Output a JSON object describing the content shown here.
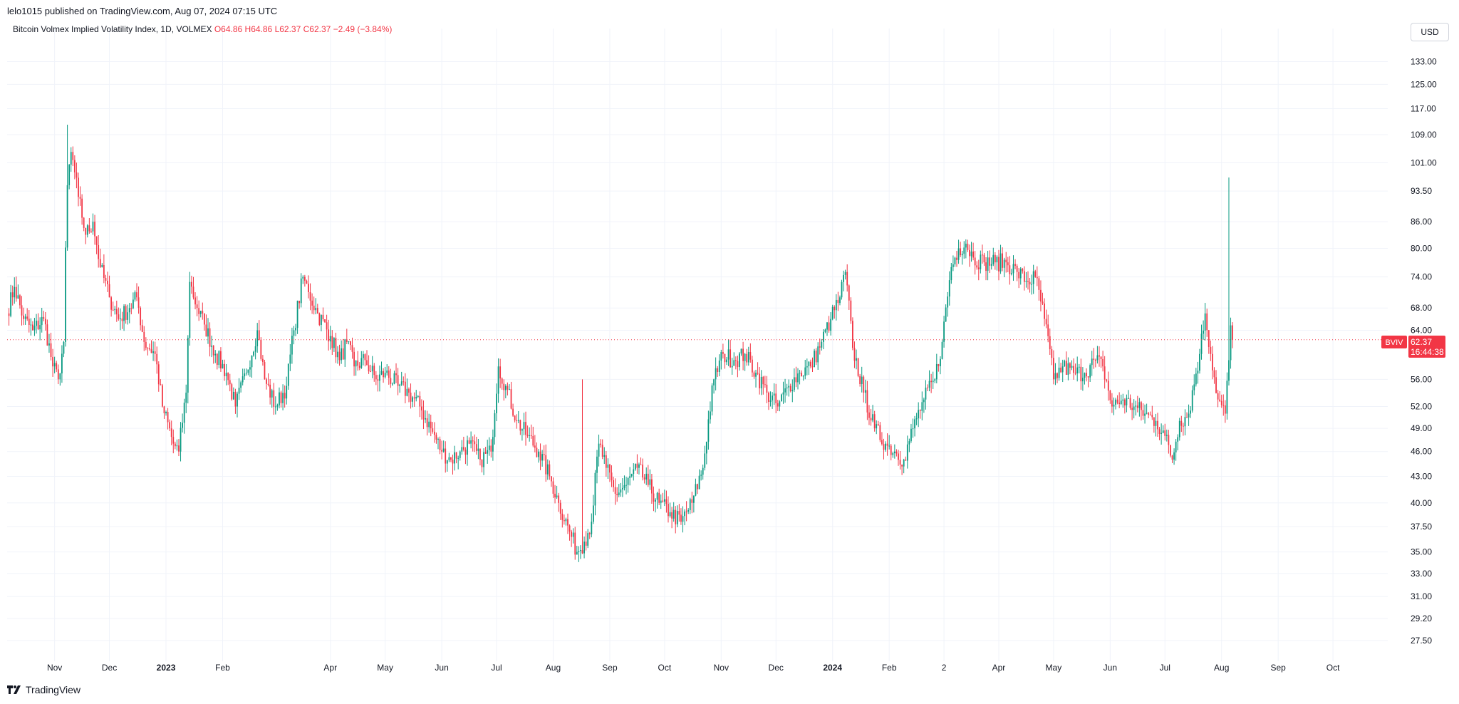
{
  "header": {
    "publisher": "lelo1015 published on TradingView.com, Aug 07, 2024 07:15 UTC"
  },
  "legend": {
    "symbol": "Bitcoin Volmex Implied Volatility Index, 1D, VOLMEX",
    "open": "O64.86",
    "high": "H64.86",
    "low": "L62.37",
    "close": "C62.37",
    "change": "−2.49 (−3.84%)"
  },
  "currency_button": "USD",
  "footer": {
    "brand": "TradingView",
    "logo_icon": "tradingview-logo-icon"
  },
  "price_tag": {
    "symbol": "BVIV",
    "price": "62.37",
    "countdown": "16:44:38",
    "color": "#f23645"
  },
  "colors": {
    "up": "#089981",
    "down": "#f23645",
    "grid": "#f0f3fa"
  },
  "chart_data": {
    "type": "candlestick",
    "y_axis_labels": [
      "133.00",
      "125.00",
      "117.00",
      "109.00",
      "101.00",
      "93.50",
      "86.00",
      "80.00",
      "74.00",
      "68.00",
      "64.00",
      "56.00",
      "52.00",
      "49.00",
      "46.00",
      "43.00",
      "40.00",
      "37.50",
      "35.00",
      "33.00",
      "31.00",
      "29.20",
      "27.50"
    ],
    "y_scale": "log",
    "y_range": [
      26.5,
      140
    ],
    "x_axis_labels": [
      {
        "label": "Nov",
        "date": "2022-11-01"
      },
      {
        "label": "Dec",
        "date": "2022-12-01"
      },
      {
        "label": "2023",
        "date": "2023-01-01",
        "bold": true
      },
      {
        "label": "Feb",
        "date": "2023-02-01"
      },
      {
        "label": "Apr",
        "date": "2023-04-01"
      },
      {
        "label": "May",
        "date": "2023-05-01"
      },
      {
        "label": "Jun",
        "date": "2023-06-01"
      },
      {
        "label": "Jul",
        "date": "2023-07-01"
      },
      {
        "label": "Aug",
        "date": "2023-08-01"
      },
      {
        "label": "Sep",
        "date": "2023-09-01"
      },
      {
        "label": "Oct",
        "date": "2023-10-01"
      },
      {
        "label": "Nov",
        "date": "2023-11-01"
      },
      {
        "label": "Dec",
        "date": "2023-12-01"
      },
      {
        "label": "2024",
        "date": "2024-01-01",
        "bold": true
      },
      {
        "label": "Feb",
        "date": "2024-02-01"
      },
      {
        "label": "2",
        "date": "2024-03-02"
      },
      {
        "label": "Apr",
        "date": "2024-04-01"
      },
      {
        "label": "May",
        "date": "2024-05-01"
      },
      {
        "label": "Jun",
        "date": "2024-06-01"
      },
      {
        "label": "Jul",
        "date": "2024-07-01"
      },
      {
        "label": "Aug",
        "date": "2024-08-01"
      },
      {
        "label": "Sep",
        "date": "2024-09-01"
      },
      {
        "label": "Oct",
        "date": "2024-10-01"
      }
    ],
    "x_range": [
      "2022-10-06",
      "2024-10-31"
    ],
    "last_price": 62.37,
    "close_path": [
      [
        "2022-10-06",
        67
      ],
      [
        "2022-10-10",
        72
      ],
      [
        "2022-10-15",
        66
      ],
      [
        "2022-10-20",
        64
      ],
      [
        "2022-10-26",
        66
      ],
      [
        "2022-10-31",
        58
      ],
      [
        "2022-11-03",
        56
      ],
      [
        "2022-11-06",
        62
      ],
      [
        "2022-11-08",
        95
      ],
      [
        "2022-11-10",
        104
      ],
      [
        "2022-11-14",
        92
      ],
      [
        "2022-11-18",
        83
      ],
      [
        "2022-11-22",
        86
      ],
      [
        "2022-11-26",
        76
      ],
      [
        "2022-12-01",
        70
      ],
      [
        "2022-12-06",
        66
      ],
      [
        "2022-12-12",
        68
      ],
      [
        "2022-12-16",
        70
      ],
      [
        "2022-12-20",
        62
      ],
      [
        "2022-12-26",
        60
      ],
      [
        "2022-12-30",
        52
      ],
      [
        "2023-01-05",
        47
      ],
      [
        "2023-01-08",
        46
      ],
      [
        "2023-01-12",
        54
      ],
      [
        "2023-01-14",
        73
      ],
      [
        "2023-01-18",
        68
      ],
      [
        "2023-01-22",
        65
      ],
      [
        "2023-01-28",
        60
      ],
      [
        "2023-02-03",
        57
      ],
      [
        "2023-02-08",
        52
      ],
      [
        "2023-02-14",
        57
      ],
      [
        "2023-02-20",
        64
      ],
      [
        "2023-02-24",
        56
      ],
      [
        "2023-03-02",
        52
      ],
      [
        "2023-03-08",
        55
      ],
      [
        "2023-03-12",
        64
      ],
      [
        "2023-03-17",
        74
      ],
      [
        "2023-03-20",
        71
      ],
      [
        "2023-03-25",
        67
      ],
      [
        "2023-04-01",
        63
      ],
      [
        "2023-04-06",
        59
      ],
      [
        "2023-04-10",
        62
      ],
      [
        "2023-04-14",
        58
      ],
      [
        "2023-04-20",
        59
      ],
      [
        "2023-04-26",
        56
      ],
      [
        "2023-05-01",
        57
      ],
      [
        "2023-05-08",
        55
      ],
      [
        "2023-05-14",
        54
      ],
      [
        "2023-05-20",
        52
      ],
      [
        "2023-05-26",
        49
      ],
      [
        "2023-06-01",
        46
      ],
      [
        "2023-06-06",
        45
      ],
      [
        "2023-06-11",
        46
      ],
      [
        "2023-06-16",
        47
      ],
      [
        "2023-06-22",
        45
      ],
      [
        "2023-06-28",
        46
      ],
      [
        "2023-07-02",
        58
      ],
      [
        "2023-07-06",
        55
      ],
      [
        "2023-07-12",
        50
      ],
      [
        "2023-07-18",
        48
      ],
      [
        "2023-07-24",
        46
      ],
      [
        "2023-07-30",
        43
      ],
      [
        "2023-08-04",
        40
      ],
      [
        "2023-08-10",
        37
      ],
      [
        "2023-08-14",
        35
      ],
      [
        "2023-08-18",
        36
      ],
      [
        "2023-08-22",
        38
      ],
      [
        "2023-08-26",
        47
      ],
      [
        "2023-08-30",
        44
      ],
      [
        "2023-09-04",
        41
      ],
      [
        "2023-09-10",
        42
      ],
      [
        "2023-09-16",
        44
      ],
      [
        "2023-09-22",
        42
      ],
      [
        "2023-09-28",
        40
      ],
      [
        "2023-10-04",
        39
      ],
      [
        "2023-10-10",
        38
      ],
      [
        "2023-10-16",
        40
      ],
      [
        "2023-10-22",
        44
      ],
      [
        "2023-10-28",
        56
      ],
      [
        "2023-11-02",
        60
      ],
      [
        "2023-11-08",
        59
      ],
      [
        "2023-11-14",
        60
      ],
      [
        "2023-11-20",
        57
      ],
      [
        "2023-11-26",
        54
      ],
      [
        "2023-12-02",
        52
      ],
      [
        "2023-12-08",
        55
      ],
      [
        "2023-12-14",
        57
      ],
      [
        "2023-12-20",
        58
      ],
      [
        "2023-12-26",
        62
      ],
      [
        "2023-12-31",
        66
      ],
      [
        "2024-01-05",
        70
      ],
      [
        "2024-01-08",
        75
      ],
      [
        "2024-01-12",
        61
      ],
      [
        "2024-01-18",
        54
      ],
      [
        "2024-01-24",
        49
      ],
      [
        "2024-01-30",
        47
      ],
      [
        "2024-02-04",
        46
      ],
      [
        "2024-02-09",
        45
      ],
      [
        "2024-02-14",
        49
      ],
      [
        "2024-02-20",
        53
      ],
      [
        "2024-02-26",
        56
      ],
      [
        "2024-03-01",
        62
      ],
      [
        "2024-03-06",
        76
      ],
      [
        "2024-03-10",
        80
      ],
      [
        "2024-03-14",
        81
      ],
      [
        "2024-03-18",
        78
      ],
      [
        "2024-03-24",
        77
      ],
      [
        "2024-03-30",
        77
      ],
      [
        "2024-04-05",
        77
      ],
      [
        "2024-04-11",
        75
      ],
      [
        "2024-04-17",
        73
      ],
      [
        "2024-04-21",
        74
      ],
      [
        "2024-04-26",
        66
      ],
      [
        "2024-05-01",
        56
      ],
      [
        "2024-05-06",
        58
      ],
      [
        "2024-05-12",
        57
      ],
      [
        "2024-05-18",
        57
      ],
      [
        "2024-05-24",
        59
      ],
      [
        "2024-05-28",
        58
      ],
      [
        "2024-06-02",
        52
      ],
      [
        "2024-06-08",
        53
      ],
      [
        "2024-06-14",
        52
      ],
      [
        "2024-06-20",
        51
      ],
      [
        "2024-06-26",
        50
      ],
      [
        "2024-07-01",
        48
      ],
      [
        "2024-07-05",
        45
      ],
      [
        "2024-07-09",
        50
      ],
      [
        "2024-07-14",
        51
      ],
      [
        "2024-07-20",
        60
      ],
      [
        "2024-07-23",
        67
      ],
      [
        "2024-07-26",
        60
      ],
      [
        "2024-07-30",
        53
      ],
      [
        "2024-08-03",
        51
      ],
      [
        "2024-08-05",
        59
      ],
      [
        "2024-08-06",
        64.86
      ],
      [
        "2024-08-07",
        62.37
      ]
    ],
    "spikes": [
      {
        "date": "2022-11-08",
        "high": 112
      },
      {
        "date": "2023-08-17",
        "high": 56
      },
      {
        "date": "2024-08-05",
        "high": 97
      }
    ]
  }
}
